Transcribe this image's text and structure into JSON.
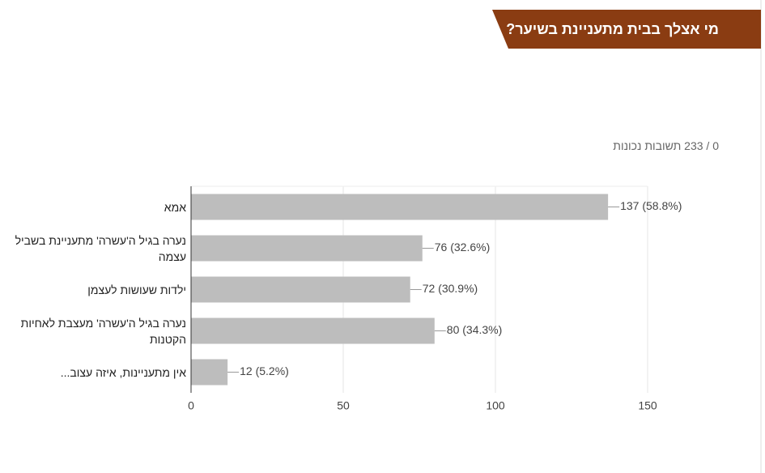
{
  "chart_data": {
    "type": "bar",
    "orientation": "horizontal",
    "title": "מי אצלך בבית מתעניינת בשיער?",
    "subtitle": "0 / 233 תשובות נכונות",
    "categories": [
      "אמא",
      "נערה בגיל ה'עשרה' מתעניינת בשביל עצמה",
      "ילדות שעושות לעצמן",
      "נערה בגיל ה'עשרה' מעצבת לאחיות הקטנות",
      "אין מתעניינות, איזה עצוב..."
    ],
    "values": [
      137,
      76,
      72,
      80,
      12
    ],
    "value_labels": [
      "137 (58.8%)",
      "76 (32.6%)",
      "72 (30.9%)",
      "80 (34.3%)",
      "12 (5.2%)"
    ],
    "color": "#bdbdbd",
    "xlim": [
      0,
      150
    ],
    "xticks": [
      0,
      50,
      100,
      150
    ],
    "grid": true
  }
}
